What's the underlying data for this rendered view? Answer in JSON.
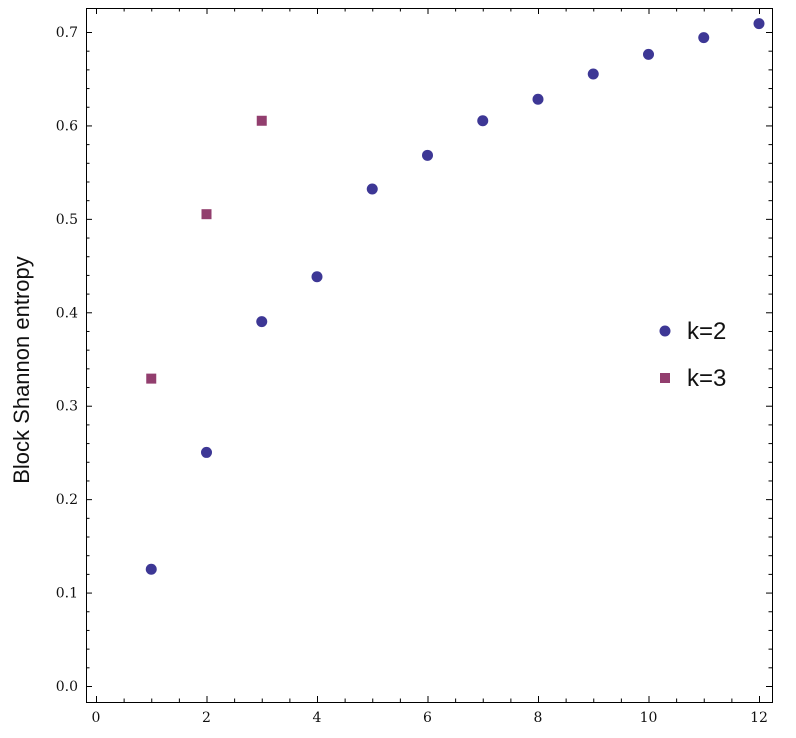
{
  "chart_data": {
    "type": "scatter",
    "title": "",
    "xlabel": "",
    "ylabel": "Block Shannon entropy",
    "xlim": [
      0,
      12
    ],
    "ylim": [
      0,
      0.7
    ],
    "x_ticks": [
      0,
      2,
      4,
      6,
      8,
      10,
      12
    ],
    "x_tick_labels": [
      "0",
      "2",
      "4",
      "6",
      "8",
      "10",
      "12"
    ],
    "y_ticks": [
      0.0,
      0.1,
      0.2,
      0.3,
      0.4,
      0.5,
      0.6,
      0.7
    ],
    "y_tick_labels": [
      "0.0",
      "0.1",
      "0.2",
      "0.3",
      "0.4",
      "0.5",
      "0.6",
      "0.7"
    ],
    "grid": false,
    "legend_position": "right",
    "series": [
      {
        "name": "k=2",
        "marker": "circle",
        "color": "#3d3795",
        "x": [
          1,
          2,
          3,
          4,
          5,
          6,
          7,
          8,
          9,
          10,
          11,
          12
        ],
        "y": [
          0.125,
          0.25,
          0.39,
          0.438,
          0.532,
          0.568,
          0.605,
          0.628,
          0.655,
          0.676,
          0.694,
          0.709
        ]
      },
      {
        "name": "k=3",
        "marker": "square",
        "color": "#923e6e",
        "x": [
          1,
          2,
          3
        ],
        "y": [
          0.329,
          0.505,
          0.605
        ]
      }
    ]
  }
}
